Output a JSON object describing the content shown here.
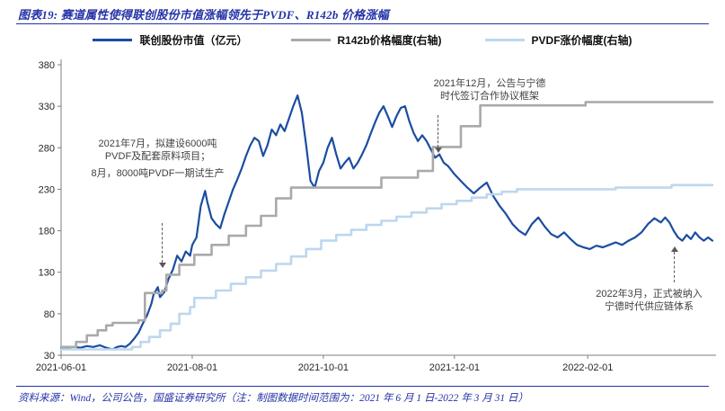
{
  "header": {
    "title": "图表19:  赛道属性使得联创股份市值涨幅领先于PVDF、R142b 价格涨幅"
  },
  "footer": {
    "source": "资料来源：Wind，公司公告，国盛证券研究所（注：制图数据时间范围为：2021 年 6 月 1 日-2022 年 3 月 31 日）"
  },
  "chart_data": {
    "type": "line",
    "title": "赛道属性使得联创股份市值涨幅领先于PVDF、R142b价格涨幅",
    "x_unit": "days_since_2021-06-01",
    "x_range": [
      0,
      303
    ],
    "ylim": [
      30,
      380
    ],
    "yticks": [
      380,
      330,
      280,
      230,
      180,
      130,
      80,
      30
    ],
    "xticks": [
      {
        "day": 0,
        "label": "2021-06-01"
      },
      {
        "day": 61,
        "label": "2021-08-01"
      },
      {
        "day": 122,
        "label": "2021-10-01"
      },
      {
        "day": 183,
        "label": "2021-12-01"
      },
      {
        "day": 245,
        "label": "2022-02-01"
      }
    ],
    "grid": false,
    "legend_position": "top",
    "series": [
      {
        "name": "联创股份市值（亿元）",
        "color": "#1b4da0",
        "width": 2.2,
        "step": false,
        "points": [
          [
            0,
            38
          ],
          [
            3,
            39
          ],
          [
            6,
            40
          ],
          [
            9,
            39
          ],
          [
            12,
            41
          ],
          [
            15,
            40
          ],
          [
            18,
            42
          ],
          [
            21,
            39
          ],
          [
            24,
            37
          ],
          [
            26,
            40
          ],
          [
            28,
            41
          ],
          [
            30,
            40
          ],
          [
            32,
            44
          ],
          [
            34,
            50
          ],
          [
            36,
            57
          ],
          [
            38,
            68
          ],
          [
            40,
            78
          ],
          [
            42,
            92
          ],
          [
            43,
            103
          ],
          [
            45,
            112
          ],
          [
            46,
            100
          ],
          [
            48,
            106
          ],
          [
            50,
            122
          ],
          [
            52,
            133
          ],
          [
            54,
            150
          ],
          [
            56,
            143
          ],
          [
            58,
            155
          ],
          [
            60,
            150
          ],
          [
            61,
            163
          ],
          [
            63,
            172
          ],
          [
            65,
            210
          ],
          [
            67,
            228
          ],
          [
            68,
            215
          ],
          [
            70,
            195
          ],
          [
            72,
            188
          ],
          [
            74,
            183
          ],
          [
            76,
            200
          ],
          [
            78,
            215
          ],
          [
            80,
            230
          ],
          [
            82,
            242
          ],
          [
            84,
            255
          ],
          [
            86,
            270
          ],
          [
            88,
            283
          ],
          [
            90,
            292
          ],
          [
            92,
            288
          ],
          [
            94,
            270
          ],
          [
            96,
            283
          ],
          [
            98,
            302
          ],
          [
            100,
            295
          ],
          [
            102,
            308
          ],
          [
            104,
            300
          ],
          [
            106,
            315
          ],
          [
            108,
            330
          ],
          [
            110,
            343
          ],
          [
            112,
            322
          ],
          [
            114,
            283
          ],
          [
            116,
            240
          ],
          [
            118,
            232
          ],
          [
            120,
            252
          ],
          [
            122,
            262
          ],
          [
            124,
            280
          ],
          [
            126,
            292
          ],
          [
            128,
            272
          ],
          [
            130,
            255
          ],
          [
            132,
            262
          ],
          [
            134,
            268
          ],
          [
            136,
            255
          ],
          [
            138,
            262
          ],
          [
            140,
            272
          ],
          [
            142,
            283
          ],
          [
            144,
            297
          ],
          [
            146,
            310
          ],
          [
            148,
            322
          ],
          [
            150,
            330
          ],
          [
            152,
            318
          ],
          [
            154,
            305
          ],
          [
            156,
            318
          ],
          [
            158,
            328
          ],
          [
            160,
            330
          ],
          [
            162,
            312
          ],
          [
            164,
            298
          ],
          [
            166,
            288
          ],
          [
            168,
            295
          ],
          [
            170,
            288
          ],
          [
            172,
            278
          ],
          [
            174,
            268
          ],
          [
            176,
            272
          ],
          [
            178,
            262
          ],
          [
            180,
            258
          ],
          [
            183,
            248
          ],
          [
            186,
            240
          ],
          [
            189,
            232
          ],
          [
            192,
            225
          ],
          [
            195,
            232
          ],
          [
            198,
            238
          ],
          [
            201,
            222
          ],
          [
            204,
            210
          ],
          [
            207,
            200
          ],
          [
            210,
            188
          ],
          [
            213,
            180
          ],
          [
            216,
            175
          ],
          [
            219,
            188
          ],
          [
            222,
            196
          ],
          [
            225,
            185
          ],
          [
            228,
            176
          ],
          [
            231,
            172
          ],
          [
            234,
            178
          ],
          [
            237,
            170
          ],
          [
            240,
            163
          ],
          [
            243,
            160
          ],
          [
            246,
            158
          ],
          [
            249,
            162
          ],
          [
            252,
            160
          ],
          [
            255,
            163
          ],
          [
            258,
            166
          ],
          [
            261,
            163
          ],
          [
            264,
            168
          ],
          [
            267,
            172
          ],
          [
            270,
            178
          ],
          [
            273,
            188
          ],
          [
            276,
            195
          ],
          [
            279,
            190
          ],
          [
            281,
            196
          ],
          [
            283,
            190
          ],
          [
            285,
            180
          ],
          [
            287,
            172
          ],
          [
            289,
            168
          ],
          [
            291,
            175
          ],
          [
            293,
            170
          ],
          [
            295,
            178
          ],
          [
            297,
            172
          ],
          [
            299,
            168
          ],
          [
            301,
            172
          ],
          [
            303,
            168
          ]
        ]
      },
      {
        "name": "R142b价格幅度(右轴)",
        "color": "#a9a9a9",
        "width": 2.6,
        "step": true,
        "points": [
          [
            0,
            40
          ],
          [
            7,
            46
          ],
          [
            12,
            54
          ],
          [
            17,
            60
          ],
          [
            21,
            66
          ],
          [
            24,
            69
          ],
          [
            36,
            72
          ],
          [
            39,
            105
          ],
          [
            47,
            108
          ],
          [
            49,
            127
          ],
          [
            55,
            139
          ],
          [
            62,
            151
          ],
          [
            70,
            163
          ],
          [
            78,
            174
          ],
          [
            86,
            186
          ],
          [
            93,
            198
          ],
          [
            100,
            219
          ],
          [
            107,
            232
          ],
          [
            146,
            232
          ],
          [
            149,
            244
          ],
          [
            166,
            252
          ],
          [
            173,
            281
          ],
          [
            186,
            306
          ],
          [
            195,
            331
          ],
          [
            240,
            331
          ],
          [
            244,
            335
          ],
          [
            303,
            335
          ]
        ]
      },
      {
        "name": "PVDF涨价幅度(右轴)",
        "color": "#bdd7ee",
        "width": 2.6,
        "step": true,
        "points": [
          [
            0,
            37
          ],
          [
            33,
            40
          ],
          [
            37,
            46
          ],
          [
            41,
            52
          ],
          [
            46,
            60
          ],
          [
            51,
            68
          ],
          [
            55,
            80
          ],
          [
            60,
            88
          ],
          [
            62,
            99
          ],
          [
            69,
            99
          ],
          [
            72,
            108
          ],
          [
            79,
            116
          ],
          [
            86,
            124
          ],
          [
            93,
            132
          ],
          [
            100,
            140
          ],
          [
            107,
            149
          ],
          [
            114,
            158
          ],
          [
            121,
            168
          ],
          [
            128,
            175
          ],
          [
            135,
            181
          ],
          [
            142,
            187
          ],
          [
            149,
            192
          ],
          [
            156,
            197
          ],
          [
            163,
            202
          ],
          [
            170,
            207
          ],
          [
            177,
            212
          ],
          [
            184,
            216
          ],
          [
            191,
            220
          ],
          [
            198,
            224
          ],
          [
            205,
            227
          ],
          [
            212,
            230
          ],
          [
            255,
            230
          ],
          [
            258,
            232
          ],
          [
            280,
            232
          ],
          [
            284,
            235
          ],
          [
            303,
            235
          ]
        ]
      }
    ],
    "annotations": [
      {
        "lines": [
          "2021年7月，拟建设6000吨",
          "PVDF及配套原料项目；",
          "8月，8000吨PVDF一期试生产"
        ]
      },
      {
        "lines": [
          "2021年12月，公告与宁德",
          "时代签订合作协议框架"
        ]
      },
      {
        "lines": [
          "2022年3月，正式被纳入",
          "宁德时代供应链体系"
        ]
      }
    ]
  }
}
